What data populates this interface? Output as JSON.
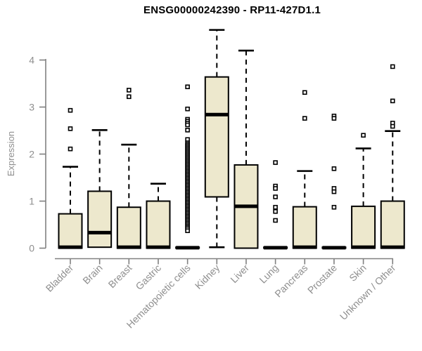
{
  "chart_data": {
    "type": "box",
    "title": "ENSG00000242390 - RP11-427D1.1",
    "ylabel": "Expression",
    "xlabel": "",
    "yticks": [
      0,
      1,
      2,
      3,
      4
    ],
    "ylim": [
      0,
      4.65
    ],
    "grid": false,
    "legend": false,
    "colors": {
      "box_fill": "#EDE8CD",
      "box_stroke": "#000000",
      "median": "#000000",
      "whisker": "#000000",
      "outlier_stroke": "#000000",
      "outlier_fill": "#ffffff",
      "axis_line": "#808080",
      "tick_text": "#8e8e8e",
      "title_text": "#000000",
      "background": "#ffffff"
    },
    "categories": [
      "Bladder",
      "Brain",
      "Breast",
      "Gastric",
      "Hematopoietic cells",
      "Kidney",
      "Liver",
      "Lung",
      "Pancreas",
      "Prostate",
      "Skin",
      "Unknown / Other"
    ],
    "boxes": [
      {
        "category": "Bladder",
        "whislo": 0,
        "q1": 0,
        "med": 0.02,
        "q3": 0.73,
        "whishi": 1.73,
        "outliers": [
          2.11,
          2.54,
          2.93
        ]
      },
      {
        "category": "Brain",
        "whislo": 0.02,
        "q1": 0.02,
        "med": 0.33,
        "q3": 1.21,
        "whishi": 2.51,
        "outliers": []
      },
      {
        "category": "Breast",
        "whislo": 0,
        "q1": 0,
        "med": 0.02,
        "q3": 0.87,
        "whishi": 2.2,
        "outliers": [
          3.22,
          3.36
        ]
      },
      {
        "category": "Gastric",
        "whislo": 0,
        "q1": 0,
        "med": 0.02,
        "q3": 1.0,
        "whishi": 1.37,
        "outliers": []
      },
      {
        "category": "Hematopoietic cells",
        "whislo": 0,
        "q1": 0,
        "med": 0.01,
        "q3": 0.02,
        "whishi": 0.02,
        "outliers": [
          3.43,
          2.96,
          2.74,
          2.7,
          2.66,
          2.62,
          2.51,
          2.31,
          2.24,
          2.21,
          2.18,
          2.15,
          2.12,
          2.09,
          2.06,
          2.03,
          2.0,
          1.97,
          1.94,
          1.91,
          1.88,
          1.85,
          1.82,
          1.79,
          1.76,
          1.73,
          1.7,
          1.67,
          1.64,
          1.61,
          1.58,
          1.55,
          1.52,
          1.49,
          1.46,
          1.43,
          1.4,
          1.37,
          1.34,
          1.31,
          1.28,
          1.25,
          1.22,
          1.19,
          1.16,
          1.13,
          1.1,
          1.07,
          1.04,
          1.01,
          0.98,
          0.95,
          0.92,
          0.89,
          0.86,
          0.83,
          0.8,
          0.77,
          0.74,
          0.71,
          0.68,
          0.65,
          0.62,
          0.59,
          0.56,
          0.53,
          0.5,
          0.47,
          0.44,
          0.41,
          0.37
        ]
      },
      {
        "category": "Kidney",
        "whislo": 0.02,
        "q1": 1.09,
        "med": 2.84,
        "q3": 3.64,
        "whishi": 4.64,
        "outliers": []
      },
      {
        "category": "Liver",
        "whislo": 0,
        "q1": 0,
        "med": 0.89,
        "q3": 1.77,
        "whishi": 4.2,
        "outliers": []
      },
      {
        "category": "Lung",
        "whislo": 0,
        "q1": 0,
        "med": 0.01,
        "q3": 0.02,
        "whishi": 0.02,
        "outliers": [
          1.82,
          1.32,
          1.27,
          1.09,
          0.87,
          0.78,
          0.59
        ]
      },
      {
        "category": "Pancreas",
        "whislo": 0,
        "q1": 0,
        "med": 0.02,
        "q3": 0.88,
        "whishi": 1.64,
        "outliers": [
          3.31,
          2.76
        ]
      },
      {
        "category": "Prostate",
        "whislo": 0,
        "q1": 0,
        "med": 0.01,
        "q3": 0.02,
        "whishi": 0.02,
        "outliers": [
          2.81,
          2.76,
          1.69,
          1.27,
          1.2,
          0.87
        ]
      },
      {
        "category": "Skin",
        "whislo": 0,
        "q1": 0,
        "med": 0.02,
        "q3": 0.89,
        "whishi": 2.12,
        "outliers": [
          2.4
        ]
      },
      {
        "category": "Unknown / Other",
        "whislo": 0,
        "q1": 0,
        "med": 0.02,
        "q3": 1.0,
        "whishi": 2.49,
        "outliers": [
          3.86,
          3.13,
          2.66,
          2.59
        ]
      }
    ]
  }
}
